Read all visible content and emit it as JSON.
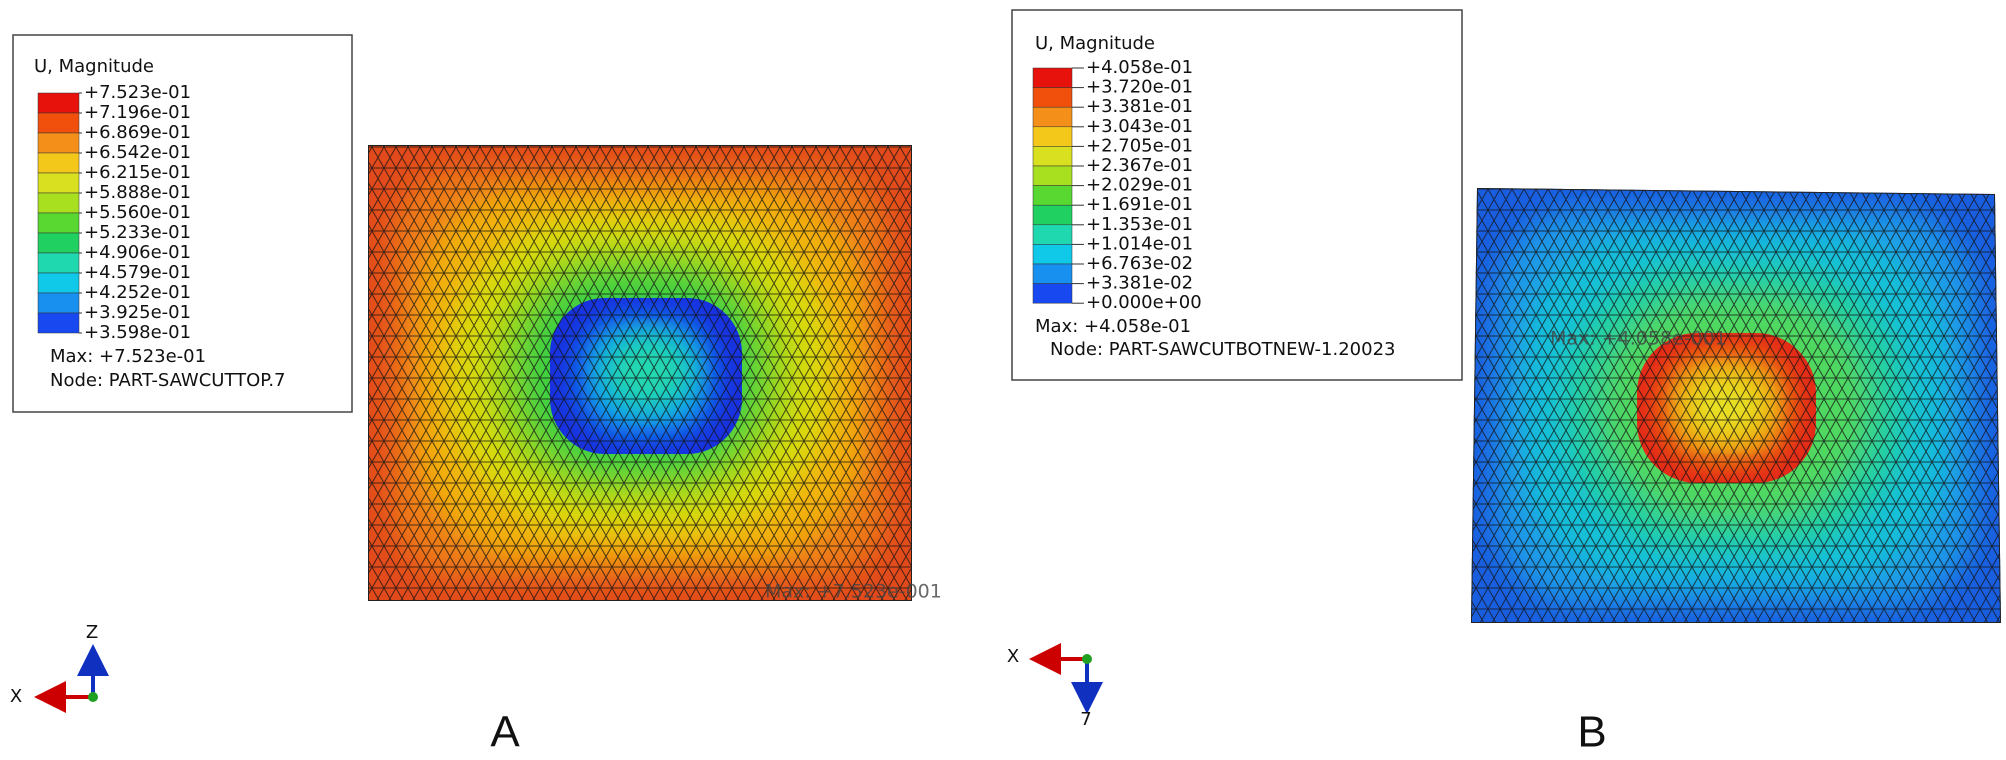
{
  "panels": [
    {
      "legend_title": "U, Magnitude",
      "legend_labels": [
        "+7.523e-01",
        "+7.196e-01",
        "+6.869e-01",
        "+6.542e-01",
        "+6.215e-01",
        "+5.888e-01",
        "+5.560e-01",
        "+5.233e-01",
        "+4.906e-01",
        "+4.579e-01",
        "+4.252e-01",
        "+3.925e-01",
        "+3.598e-01"
      ],
      "max": "Max: +7.523e-01",
      "node": "Node: PART-SAWCUTTOP.7",
      "plot_annotation": "Max: +7.523e-001",
      "axis_z": "Z",
      "axis_x": "X",
      "label": "A"
    },
    {
      "legend_title": "U, Magnitude",
      "legend_labels": [
        "+4.058e-01",
        "+3.720e-01",
        "+3.381e-01",
        "+3.043e-01",
        "+2.705e-01",
        "+2.367e-01",
        "+2.029e-01",
        "+1.691e-01",
        "+1.353e-01",
        "+1.014e-01",
        "+6.763e-02",
        "+3.381e-02",
        "+0.000e+00"
      ],
      "max": "Max: +4.058e-01",
      "node": "Node: PART-SAWCUTBOTNEW-1.20023",
      "plot_annotation": "Max: +4.058e-001",
      "axis_z": "7",
      "axis_x": "X",
      "label": "B"
    }
  ]
}
